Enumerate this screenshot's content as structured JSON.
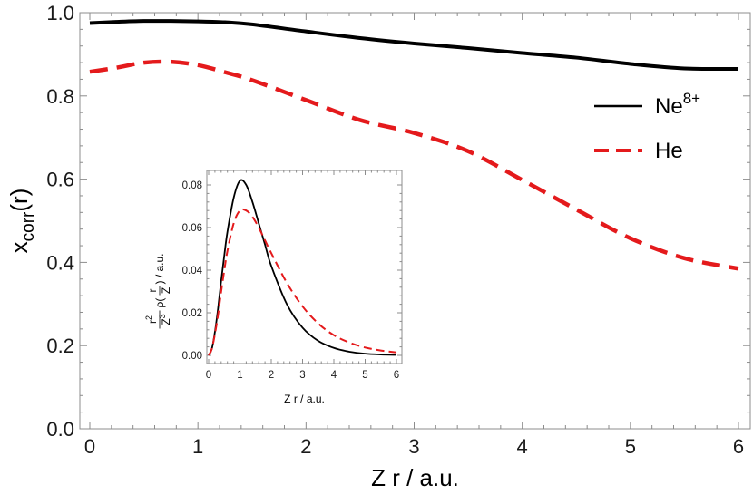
{
  "chart_data": [
    {
      "type": "line",
      "xlabel": "Z r / a.u.",
      "ylabel": "x",
      "ylabel_sub": "corr",
      "ylabel_suffix": "(r)",
      "xlim": [
        0,
        6
      ],
      "ylim": [
        0,
        1.0
      ],
      "xticks": [
        0,
        1,
        2,
        3,
        4,
        5,
        6
      ],
      "yticks": [
        0.0,
        0.2,
        0.4,
        0.6,
        0.8,
        1.0
      ],
      "xtick_labels": [
        "0",
        "1",
        "2",
        "3",
        "4",
        "5",
        "6"
      ],
      "ytick_labels": [
        "0.0",
        "0.2",
        "0.4",
        "0.6",
        "0.8",
        "1.0"
      ],
      "legend_position": "right",
      "series": [
        {
          "name": "Ne",
          "name_sup": "8+",
          "color": "#000000",
          "dash": "solid",
          "x": [
            0,
            0.25,
            0.5,
            0.75,
            1.0,
            1.25,
            1.5,
            2.0,
            2.5,
            3.0,
            3.5,
            4.0,
            4.5,
            5.0,
            5.5,
            6.0
          ],
          "y": [
            0.975,
            0.978,
            0.98,
            0.98,
            0.979,
            0.977,
            0.972,
            0.955,
            0.939,
            0.926,
            0.915,
            0.903,
            0.892,
            0.877,
            0.866,
            0.865
          ]
        },
        {
          "name": "He",
          "color": "#e41a1c",
          "dash": "dashed",
          "x": [
            0,
            0.25,
            0.5,
            0.75,
            1.0,
            1.25,
            1.5,
            2.0,
            2.5,
            3.0,
            3.5,
            4.0,
            4.5,
            5.0,
            5.5,
            6.0
          ],
          "y": [
            0.858,
            0.868,
            0.88,
            0.882,
            0.874,
            0.857,
            0.838,
            0.79,
            0.742,
            0.711,
            0.667,
            0.598,
            0.527,
            0.458,
            0.41,
            0.385
          ]
        }
      ]
    },
    {
      "type": "line",
      "xlabel": "Z r / a.u.",
      "ylabel_fraction_num": "r",
      "ylabel_fraction_num_sup": "2",
      "ylabel_fraction_den": "Z",
      "ylabel_fraction_den_sup": "3",
      "ylabel_rho": "ρ(",
      "ylabel_inner_num": "r",
      "ylabel_inner_den": "Z",
      "ylabel_tail": ") / a.u.",
      "xlim": [
        0,
        6
      ],
      "ylim": [
        0,
        0.085
      ],
      "xticks": [
        0,
        1,
        2,
        3,
        4,
        5,
        6
      ],
      "yticks": [
        0.0,
        0.02,
        0.04,
        0.06,
        0.08
      ],
      "xtick_labels": [
        "0",
        "1",
        "2",
        "3",
        "4",
        "5",
        "6"
      ],
      "ytick_labels": [
        "0.00",
        "0.02",
        "0.04",
        "0.06",
        "0.08"
      ],
      "series": [
        {
          "name": "Ne",
          "color": "#000000",
          "dash": "solid",
          "x": [
            0,
            0.1,
            0.2,
            0.3,
            0.4,
            0.5,
            0.6,
            0.8,
            1.0,
            1.2,
            1.4,
            1.6,
            1.8,
            2.0,
            2.5,
            3.0,
            3.5,
            4.0,
            4.5,
            5.0,
            5.5,
            6.0
          ],
          "y": [
            0.0,
            0.003,
            0.011,
            0.022,
            0.035,
            0.047,
            0.058,
            0.074,
            0.082,
            0.08,
            0.072,
            0.062,
            0.052,
            0.042,
            0.024,
            0.013,
            0.0068,
            0.0035,
            0.0017,
            0.0008,
            0.0004,
            0.0002
          ]
        },
        {
          "name": "He",
          "color": "#e41a1c",
          "dash": "dashed",
          "x": [
            0,
            0.1,
            0.2,
            0.3,
            0.4,
            0.5,
            0.6,
            0.8,
            1.0,
            1.2,
            1.4,
            1.6,
            1.8,
            2.0,
            2.5,
            3.0,
            3.5,
            4.0,
            4.5,
            5.0,
            5.5,
            6.0
          ],
          "y": [
            0.0,
            0.003,
            0.01,
            0.019,
            0.03,
            0.04,
            0.049,
            0.062,
            0.068,
            0.068,
            0.065,
            0.06,
            0.054,
            0.048,
            0.034,
            0.023,
            0.015,
            0.0095,
            0.006,
            0.0037,
            0.0023,
            0.0014
          ]
        }
      ]
    }
  ]
}
